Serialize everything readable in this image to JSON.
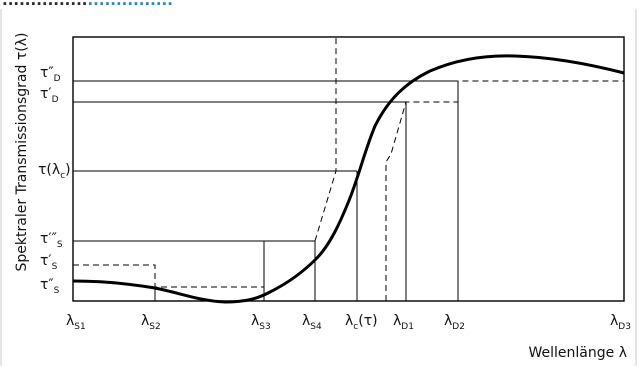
{
  "header": {
    "part1": "...............",
    "part2": "..............."
  },
  "axes": {
    "ylabel": "Spektraler Transmissionsgrad τ(λ)",
    "xlabel": "Wellenlänge λ"
  },
  "y_ticks": [
    {
      "main": "τ″",
      "sub": "D"
    },
    {
      "main": "τ′",
      "sub": "D"
    },
    {
      "main": "τ(λ",
      "sub": "c",
      "after": ")"
    },
    {
      "main": "τ′″",
      "sub": "S"
    },
    {
      "main": "τ′",
      "sub": "S"
    },
    {
      "main": "τ″",
      "sub": "S"
    }
  ],
  "x_ticks": [
    {
      "main": "λ",
      "sub": "S1"
    },
    {
      "main": "λ",
      "sub": "S2"
    },
    {
      "main": "λ",
      "sub": "S3"
    },
    {
      "main": "λ",
      "sub": "S4"
    },
    {
      "main": "λ",
      "sub": "c",
      "after": "(τ)"
    },
    {
      "main": "λ",
      "sub": "D1"
    },
    {
      "main": "λ",
      "sub": "D2"
    },
    {
      "main": "λ",
      "sub": "D3"
    }
  ],
  "colors": {
    "header_dark": "#2b2b2b",
    "header_accent": "#1a8fc7",
    "frame": "#c8c8c8"
  }
}
